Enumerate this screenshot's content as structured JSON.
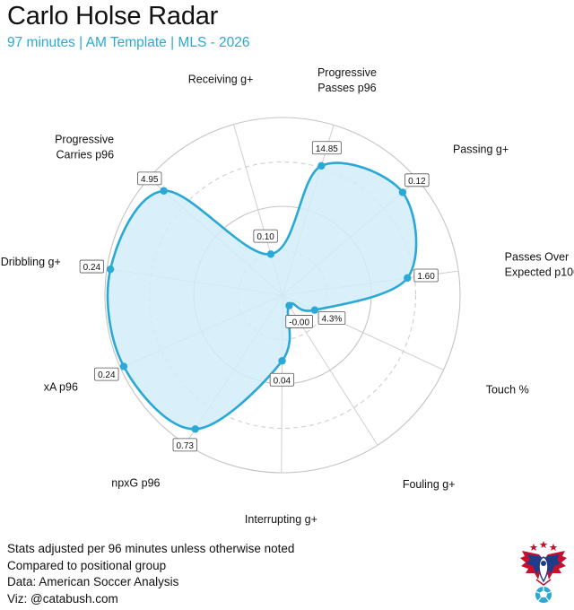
{
  "header": {
    "title": "Carlo Holse Radar",
    "subtitle": "97 minutes | AM Template | MLS - 2026"
  },
  "chart_data": {
    "type": "radar",
    "title": "Carlo Holse Radar",
    "subtitle": "97 minutes | AM Template | MLS - 2026",
    "rlim": [
      0,
      100
    ],
    "grid": true,
    "axes": [
      {
        "label": "Receiving g+",
        "value_label": "0.10",
        "percentile": 24
      },
      {
        "label": "Progressive Passes p96",
        "value_label": "14.85",
        "percentile": 76
      },
      {
        "label": "Passing g+",
        "value_label": "0.12",
        "percentile": 89
      },
      {
        "label": "Passes Over Expected p100",
        "value_label": "1.60",
        "percentile": 71
      },
      {
        "label": "Touch %",
        "value_label": "4.3%",
        "percentile": 20
      },
      {
        "label": "Fouling g+",
        "value_label": "-0.00",
        "percentile": 7
      },
      {
        "label": "Interrupting g+",
        "value_label": "0.04",
        "percentile": 37
      },
      {
        "label": "npxG p96",
        "value_label": "0.73",
        "percentile": 90
      },
      {
        "label": "xA p96",
        "value_label": "0.24",
        "percentile": 98
      },
      {
        "label": "Dribbling g+",
        "value_label": "0.24",
        "percentile": 98
      },
      {
        "label": "Progressive Carries p96",
        "value_label": "4.95",
        "percentile": 89
      }
    ],
    "colors": {
      "fill": "#d2ecf8",
      "line": "#2aa9d6",
      "grid": "#cccccc"
    }
  },
  "footer": {
    "lines": [
      "Stats adjusted per 96 minutes unless otherwise noted",
      "Compared to positional group",
      "Data: American Soccer Analysis",
      "Viz: @catabush.com"
    ]
  },
  "logo": {
    "icon": "eagle-soccer-logo",
    "colors": [
      "#c8102e",
      "#1f3c88",
      "#2aa9d6"
    ]
  }
}
